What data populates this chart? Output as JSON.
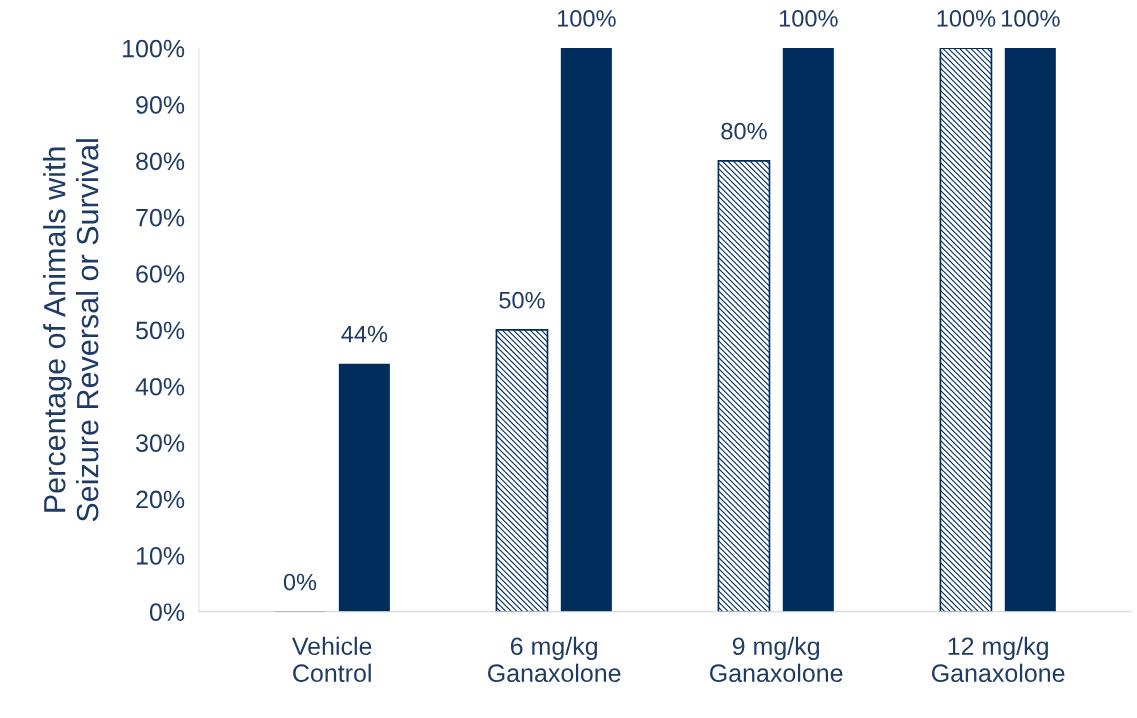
{
  "chart_data": {
    "type": "bar",
    "ylabel": "Percentage of Animals with\nSeizure Reversal or Survival",
    "categories": [
      "Vehicle\nControl",
      "6 mg/kg\nGanaxolone",
      "9 mg/kg\nGanaxolone",
      "12 mg/kg\nGanaxolone"
    ],
    "series": [
      {
        "color": "#002d5c",
        "values": [
          0,
          50,
          80,
          100
        ],
        "value_labels": [
          "0%",
          "50%",
          "80%",
          "100%"
        ]
      },
      {
        "color": "#002d5c",
        "values": [
          44,
          100,
          100,
          100
        ],
        "value_labels": [
          "44%",
          "100%",
          "100%",
          "100%"
        ]
      }
    ],
    "ylim": [
      0,
      100
    ],
    "yticks": [
      {
        "value": 0,
        "label": "0%"
      },
      {
        "value": 10,
        "label": "10%"
      },
      {
        "value": 20,
        "label": "20%"
      },
      {
        "value": 30,
        "label": "30%"
      },
      {
        "value": 40,
        "label": "40%"
      },
      {
        "value": 50,
        "label": "50%"
      },
      {
        "value": 60,
        "label": "60%"
      },
      {
        "value": 70,
        "label": "70%"
      },
      {
        "value": 80,
        "label": "80%"
      },
      {
        "value": 90,
        "label": "90%"
      },
      {
        "value": 100,
        "label": "100%"
      }
    ],
    "grid": false,
    "legend": false
  }
}
